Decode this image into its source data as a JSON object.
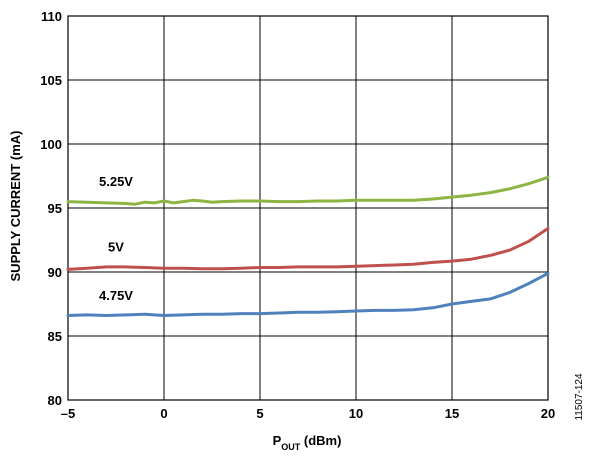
{
  "chart_data": {
    "type": "line",
    "title": "",
    "xlabel_main": "P",
    "xlabel_sub": "OUT",
    "xlabel_unit": " (dBm)",
    "ylabel": "SUPPLY CURRENT (mA)",
    "xlim": [
      -5,
      20
    ],
    "ylim": [
      80,
      110
    ],
    "x_ticks": [
      -5,
      0,
      5,
      10,
      15,
      20
    ],
    "x_tick_labels": [
      "–5",
      "0",
      "5",
      "10",
      "15",
      "20"
    ],
    "y_ticks": [
      80,
      85,
      90,
      95,
      100,
      105,
      110
    ],
    "y_tick_labels": [
      "80",
      "85",
      "90",
      "95",
      "100",
      "105",
      "110"
    ],
    "grid": true,
    "figure_id": "11507-124",
    "series": [
      {
        "name": "5.25V",
        "color": "#8DB542",
        "label_at": [
          -2.5,
          96.7
        ],
        "x": [
          -5,
          -4,
          -3,
          -2,
          -1.5,
          -1,
          -0.5,
          0,
          0.5,
          1,
          1.5,
          2,
          2.5,
          3,
          4,
          5,
          6,
          7,
          8,
          9,
          10,
          11,
          12,
          13,
          14,
          15,
          16,
          17,
          18,
          19,
          20
        ],
        "y": [
          95.5,
          95.45,
          95.4,
          95.35,
          95.3,
          95.45,
          95.4,
          95.55,
          95.4,
          95.5,
          95.6,
          95.55,
          95.45,
          95.5,
          95.55,
          95.55,
          95.5,
          95.5,
          95.55,
          95.55,
          95.6,
          95.6,
          95.6,
          95.6,
          95.7,
          95.85,
          96.0,
          96.2,
          96.5,
          96.9,
          97.4
        ]
      },
      {
        "name": "5V",
        "color": "#C0504D",
        "label_at": [
          -2.5,
          91.6
        ],
        "x": [
          -5,
          -4,
          -3,
          -2,
          -1,
          0,
          1,
          2,
          3,
          4,
          5,
          6,
          7,
          8,
          9,
          10,
          11,
          12,
          13,
          14,
          15,
          16,
          17,
          18,
          19,
          20
        ],
        "y": [
          90.2,
          90.3,
          90.4,
          90.4,
          90.35,
          90.3,
          90.3,
          90.25,
          90.25,
          90.3,
          90.35,
          90.35,
          90.4,
          90.4,
          90.4,
          90.45,
          90.5,
          90.55,
          90.6,
          90.75,
          90.85,
          91.0,
          91.3,
          91.7,
          92.4,
          93.4
        ]
      },
      {
        "name": "4.75V",
        "color": "#4F81BD",
        "label_at": [
          -2.5,
          87.8
        ],
        "x": [
          -5,
          -4,
          -3,
          -2,
          -1,
          0,
          1,
          2,
          3,
          4,
          5,
          6,
          7,
          8,
          9,
          10,
          11,
          12,
          13,
          14,
          15,
          16,
          17,
          18,
          19,
          20
        ],
        "y": [
          86.6,
          86.65,
          86.6,
          86.65,
          86.7,
          86.6,
          86.65,
          86.7,
          86.7,
          86.75,
          86.75,
          86.8,
          86.85,
          86.85,
          86.9,
          86.95,
          87.0,
          87.0,
          87.05,
          87.2,
          87.5,
          87.7,
          87.9,
          88.4,
          89.1,
          89.9
        ]
      }
    ]
  }
}
